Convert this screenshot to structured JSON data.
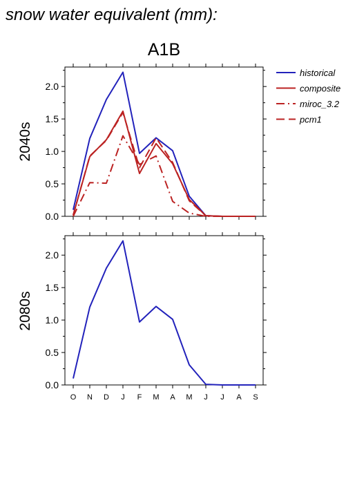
{
  "header": {
    "title": "snow water equivalent (mm):"
  },
  "chart_data": [
    {
      "type": "line",
      "title": "A1B",
      "ylabel": "2040s",
      "categories": [
        "O",
        "N",
        "D",
        "J",
        "F",
        "M",
        "A",
        "M",
        "J",
        "J",
        "A",
        "S"
      ],
      "ylim": [
        0,
        2.3
      ],
      "yticks": [
        0.0,
        0.5,
        1.0,
        1.5,
        2.0
      ],
      "ytick_labels": [
        "0.0",
        "0.5",
        "1.0",
        "1.5",
        "2.0"
      ],
      "legend_position": "right",
      "series": [
        {
          "name": "historical",
          "color": "#2222bb",
          "dash": "solid",
          "values": [
            0.1,
            1.2,
            1.8,
            2.22,
            0.97,
            1.21,
            1.01,
            0.31,
            0.01,
            0.0,
            0.0,
            0.0
          ]
        },
        {
          "name": "composite",
          "color": "#bb2222",
          "dash": "solid",
          "values": [
            0.02,
            0.92,
            1.18,
            1.62,
            0.66,
            1.12,
            0.81,
            0.26,
            0.01,
            0.0,
            0.0,
            0.0
          ]
        },
        {
          "name": "miroc_3.2",
          "color": "#bb2222",
          "dash": "dashdot",
          "values": [
            0.0,
            0.52,
            0.51,
            1.24,
            0.8,
            0.93,
            0.23,
            0.05,
            0.0,
            0.0,
            0.0,
            0.0
          ]
        },
        {
          "name": "pcm1",
          "color": "#bb2222",
          "dash": "dash",
          "values": [
            0.02,
            0.93,
            1.17,
            1.6,
            0.75,
            1.21,
            0.83,
            0.24,
            0.01,
            0.0,
            0.0,
            0.0
          ]
        }
      ]
    },
    {
      "type": "line",
      "title": "",
      "ylabel": "2080s",
      "categories": [
        "O",
        "N",
        "D",
        "J",
        "F",
        "M",
        "A",
        "M",
        "J",
        "J",
        "A",
        "S"
      ],
      "ylim": [
        0,
        2.3
      ],
      "yticks": [
        0.0,
        0.5,
        1.0,
        1.5,
        2.0
      ],
      "ytick_labels": [
        "0.0",
        "0.5",
        "1.0",
        "1.5",
        "2.0"
      ],
      "series": [
        {
          "name": "historical",
          "color": "#2222bb",
          "dash": "solid",
          "values": [
            0.1,
            1.2,
            1.8,
            2.22,
            0.97,
            1.21,
            1.01,
            0.31,
            0.01,
            0.0,
            0.0,
            0.0
          ]
        }
      ]
    }
  ]
}
